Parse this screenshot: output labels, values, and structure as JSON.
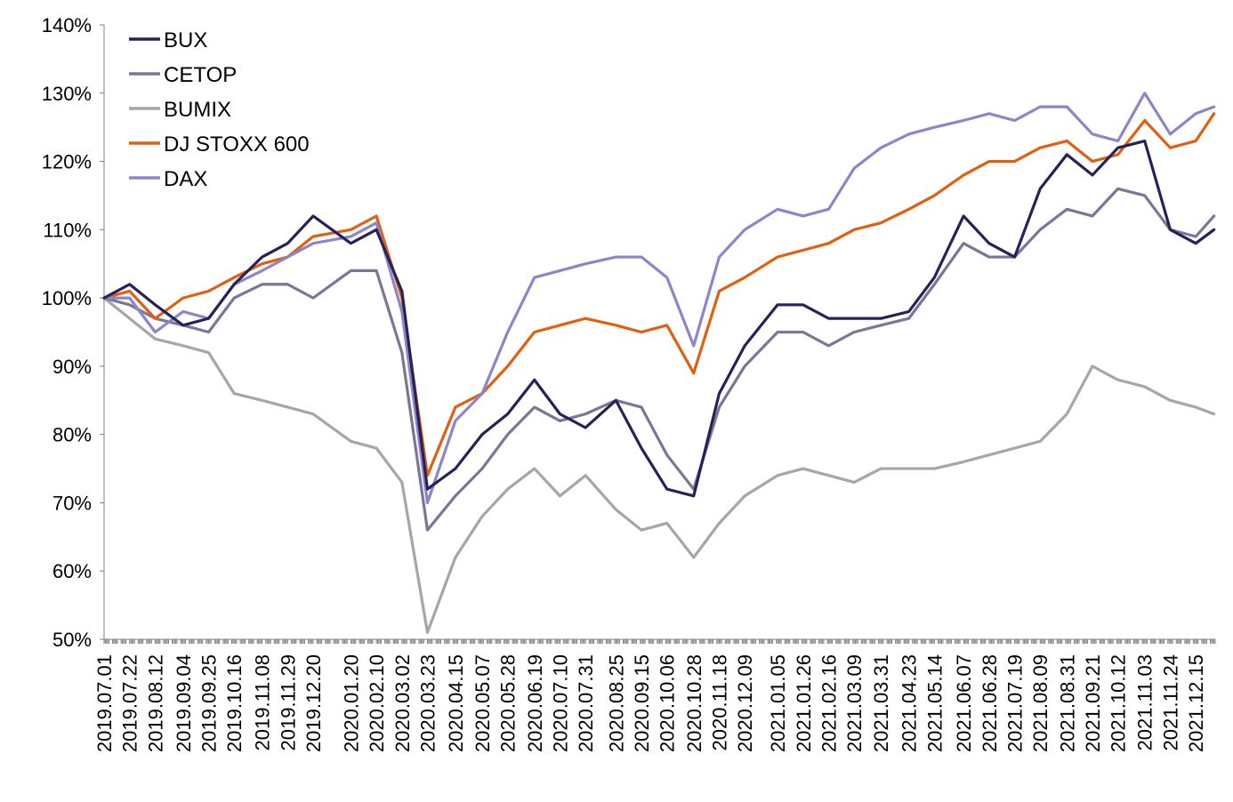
{
  "chart_data": {
    "type": "line",
    "title": "",
    "xlabel": "",
    "ylabel": "",
    "ylim": [
      50,
      140
    ],
    "y_unit": "%",
    "y_ticks": [
      50,
      60,
      70,
      80,
      90,
      100,
      110,
      120,
      130,
      140
    ],
    "y_tick_labels": [
      "50%",
      "60%",
      "70%",
      "80%",
      "90%",
      "100%",
      "110%",
      "120%",
      "130%",
      "140%"
    ],
    "x_range": [
      "2019-07-01",
      "2021-12-31"
    ],
    "x_tick_labels": [
      "2019.07.01",
      "2019.07.22",
      "2019.08.12",
      "2019.09.04",
      "2019.09.25",
      "2019.10.16",
      "2019.11.08",
      "2019.11.29",
      "2019.12.20",
      "2020.01.20",
      "2020.02.10",
      "2020.03.02",
      "2020.03.23",
      "2020.04.15",
      "2020.05.07",
      "2020.05.28",
      "2020.06.19",
      "2020.07.10",
      "2020.07.31",
      "2020.08.25",
      "2020.09.15",
      "2020.10.06",
      "2020.10.28",
      "2020.11.18",
      "2020.12.09",
      "2021.01.05",
      "2021.01.26",
      "2021.02.16",
      "2021.03.09",
      "2021.03.31",
      "2021.04.23",
      "2021.05.14",
      "2021.06.07",
      "2021.06.28",
      "2021.07.19",
      "2021.08.09",
      "2021.08.31",
      "2021.09.21",
      "2021.10.12",
      "2021.11.03",
      "2021.11.24",
      "2021.12.15"
    ],
    "grid": false,
    "legend_placement": "top-left",
    "series": [
      {
        "name": "BUX",
        "color": "#26215a",
        "x": [
          "2019-07-01",
          "2019-07-22",
          "2019-08-12",
          "2019-09-04",
          "2019-09-25",
          "2019-10-16",
          "2019-11-08",
          "2019-11-29",
          "2019-12-20",
          "2020-01-20",
          "2020-02-10",
          "2020-03-02",
          "2020-03-23",
          "2020-04-15",
          "2020-05-07",
          "2020-05-28",
          "2020-06-19",
          "2020-07-10",
          "2020-07-31",
          "2020-08-25",
          "2020-09-15",
          "2020-10-06",
          "2020-10-28",
          "2020-11-18",
          "2020-12-09",
          "2021-01-05",
          "2021-01-26",
          "2021-02-16",
          "2021-03-09",
          "2021-03-31",
          "2021-04-23",
          "2021-05-14",
          "2021-06-07",
          "2021-06-28",
          "2021-07-19",
          "2021-08-09",
          "2021-08-31",
          "2021-09-21",
          "2021-10-12",
          "2021-11-03",
          "2021-11-24",
          "2021-12-15",
          "2021-12-30"
        ],
        "y": [
          100,
          102,
          99,
          96,
          97,
          102,
          106,
          108,
          112,
          108,
          110,
          101,
          72,
          75,
          80,
          83,
          88,
          83,
          81,
          85,
          78,
          72,
          71,
          86,
          93,
          99,
          99,
          97,
          97,
          97,
          98,
          103,
          112,
          108,
          106,
          116,
          121,
          118,
          122,
          123,
          110,
          108,
          110
        ]
      },
      {
        "name": "CETOP",
        "color": "#7b7596",
        "x": [
          "2019-07-01",
          "2019-07-22",
          "2019-08-12",
          "2019-09-04",
          "2019-09-25",
          "2019-10-16",
          "2019-11-08",
          "2019-11-29",
          "2019-12-20",
          "2020-01-20",
          "2020-02-10",
          "2020-03-02",
          "2020-03-23",
          "2020-04-15",
          "2020-05-07",
          "2020-05-28",
          "2020-06-19",
          "2020-07-10",
          "2020-07-31",
          "2020-08-25",
          "2020-09-15",
          "2020-10-06",
          "2020-10-28",
          "2020-11-18",
          "2020-12-09",
          "2021-01-05",
          "2021-01-26",
          "2021-02-16",
          "2021-03-09",
          "2021-03-31",
          "2021-04-23",
          "2021-05-14",
          "2021-06-07",
          "2021-06-28",
          "2021-07-19",
          "2021-08-09",
          "2021-08-31",
          "2021-09-21",
          "2021-10-12",
          "2021-11-03",
          "2021-11-24",
          "2021-12-15",
          "2021-12-30"
        ],
        "y": [
          100,
          99,
          97,
          96,
          95,
          100,
          102,
          102,
          100,
          104,
          104,
          92,
          66,
          71,
          75,
          80,
          84,
          82,
          83,
          85,
          84,
          77,
          72,
          84,
          90,
          95,
          95,
          93,
          95,
          96,
          97,
          102,
          108,
          106,
          106,
          110,
          113,
          112,
          116,
          115,
          110,
          109,
          112
        ]
      },
      {
        "name": "BUMIX",
        "color": "#a6a6a6",
        "x": [
          "2019-07-01",
          "2019-07-22",
          "2019-08-12",
          "2019-09-04",
          "2019-09-25",
          "2019-10-16",
          "2019-11-08",
          "2019-11-29",
          "2019-12-20",
          "2020-01-20",
          "2020-02-10",
          "2020-03-02",
          "2020-03-23",
          "2020-04-15",
          "2020-05-07",
          "2020-05-28",
          "2020-06-19",
          "2020-07-10",
          "2020-07-31",
          "2020-08-25",
          "2020-09-15",
          "2020-10-06",
          "2020-10-28",
          "2020-11-18",
          "2020-12-09",
          "2021-01-05",
          "2021-01-26",
          "2021-02-16",
          "2021-03-09",
          "2021-03-31",
          "2021-04-23",
          "2021-05-14",
          "2021-06-07",
          "2021-06-28",
          "2021-07-19",
          "2021-08-09",
          "2021-08-31",
          "2021-09-21",
          "2021-10-12",
          "2021-11-03",
          "2021-11-24",
          "2021-12-15",
          "2021-12-30"
        ],
        "y": [
          100,
          97,
          94,
          93,
          92,
          86,
          85,
          84,
          83,
          79,
          78,
          73,
          51,
          62,
          68,
          72,
          75,
          71,
          74,
          69,
          66,
          67,
          62,
          67,
          71,
          74,
          75,
          74,
          73,
          75,
          75,
          75,
          76,
          77,
          78,
          79,
          83,
          90,
          88,
          87,
          85,
          84,
          83
        ]
      },
      {
        "name": "DJ STOXX 600",
        "color": "#e0600f",
        "x": [
          "2019-07-01",
          "2019-07-22",
          "2019-08-12",
          "2019-09-04",
          "2019-09-25",
          "2019-10-16",
          "2019-11-08",
          "2019-11-29",
          "2019-12-20",
          "2020-01-20",
          "2020-02-10",
          "2020-03-02",
          "2020-03-23",
          "2020-04-15",
          "2020-05-07",
          "2020-05-28",
          "2020-06-19",
          "2020-07-10",
          "2020-07-31",
          "2020-08-25",
          "2020-09-15",
          "2020-10-06",
          "2020-10-28",
          "2020-11-18",
          "2020-12-09",
          "2021-01-05",
          "2021-01-26",
          "2021-02-16",
          "2021-03-09",
          "2021-03-31",
          "2021-04-23",
          "2021-05-14",
          "2021-06-07",
          "2021-06-28",
          "2021-07-19",
          "2021-08-09",
          "2021-08-31",
          "2021-09-21",
          "2021-10-12",
          "2021-11-03",
          "2021-11-24",
          "2021-12-15",
          "2021-12-30"
        ],
        "y": [
          100,
          101,
          97,
          100,
          101,
          103,
          105,
          106,
          109,
          110,
          112,
          100,
          74,
          84,
          86,
          90,
          95,
          96,
          97,
          96,
          95,
          96,
          89,
          101,
          103,
          106,
          107,
          108,
          110,
          111,
          113,
          115,
          118,
          120,
          120,
          122,
          123,
          120,
          121,
          126,
          122,
          123,
          127
        ]
      },
      {
        "name": "DAX",
        "color": "#8a86c9",
        "x": [
          "2019-07-01",
          "2019-07-22",
          "2019-08-12",
          "2019-09-04",
          "2019-09-25",
          "2019-10-16",
          "2019-11-08",
          "2019-11-29",
          "2019-12-20",
          "2020-01-20",
          "2020-02-10",
          "2020-03-02",
          "2020-03-23",
          "2020-04-15",
          "2020-05-07",
          "2020-05-28",
          "2020-06-19",
          "2020-07-10",
          "2020-07-31",
          "2020-08-25",
          "2020-09-15",
          "2020-10-06",
          "2020-10-28",
          "2020-11-18",
          "2020-12-09",
          "2021-01-05",
          "2021-01-26",
          "2021-02-16",
          "2021-03-09",
          "2021-03-31",
          "2021-04-23",
          "2021-05-14",
          "2021-06-07",
          "2021-06-28",
          "2021-07-19",
          "2021-08-09",
          "2021-08-31",
          "2021-09-21",
          "2021-10-12",
          "2021-11-03",
          "2021-11-24",
          "2021-12-15",
          "2021-12-30"
        ],
        "y": [
          100,
          100,
          95,
          98,
          97,
          102,
          104,
          106,
          108,
          109,
          111,
          98,
          70,
          82,
          86,
          95,
          103,
          104,
          105,
          106,
          106,
          103,
          93,
          106,
          110,
          113,
          112,
          113,
          119,
          122,
          124,
          125,
          126,
          127,
          126,
          128,
          128,
          124,
          123,
          130,
          124,
          127,
          128
        ]
      }
    ]
  }
}
